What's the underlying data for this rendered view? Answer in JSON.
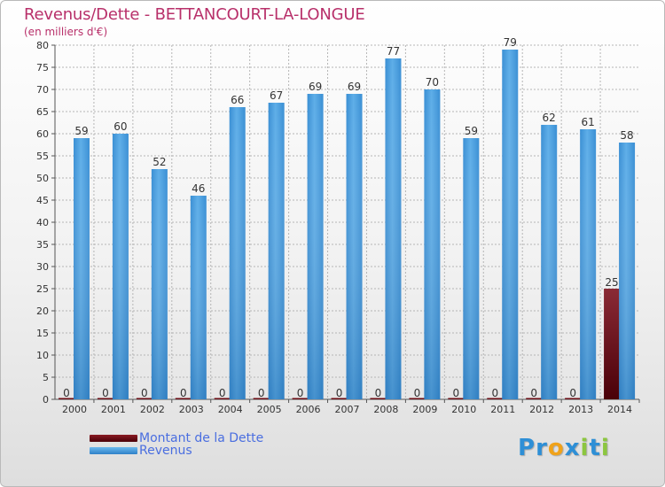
{
  "header": {
    "title": "Revenus/Dette - BETTANCOURT-LA-LONGUE",
    "subtitle": "(en milliers d'€)"
  },
  "chart_data": {
    "type": "bar",
    "title": "Revenus/Dette - BETTANCOURT-LA-LONGUE",
    "ylabel": "(en milliers d'€)",
    "xlabel": "",
    "categories": [
      "2000",
      "2001",
      "2002",
      "2003",
      "2004",
      "2005",
      "2006",
      "2007",
      "2008",
      "2009",
      "2010",
      "2011",
      "2012",
      "2013",
      "2014"
    ],
    "series": [
      {
        "name": "Montant de la Dette",
        "color": "#6b0a12",
        "values": [
          0,
          0,
          0,
          0,
          0,
          0,
          0,
          0,
          0,
          0,
          0,
          0,
          0,
          0,
          25
        ]
      },
      {
        "name": "Revenus",
        "color": "#4fa3e3",
        "values": [
          59,
          60,
          52,
          46,
          66,
          67,
          69,
          69,
          77,
          70,
          59,
          79,
          62,
          61,
          58
        ]
      }
    ],
    "ylim": [
      0,
      80
    ],
    "yticks": [
      0,
      5,
      10,
      15,
      20,
      25,
      30,
      35,
      40,
      45,
      50,
      55,
      60,
      65,
      70,
      75,
      80
    ],
    "grid": true,
    "legend_position": "bottom-left"
  },
  "legend": {
    "items": [
      {
        "label": "Montant de la Dette",
        "color": "#6b0a12"
      },
      {
        "label": "Revenus",
        "color": "#4fa3e3"
      }
    ]
  },
  "logo": {
    "letters": [
      "P",
      "r",
      "o",
      "x",
      "i",
      "t",
      "i"
    ],
    "colors": [
      "#2e8fd6",
      "#2e8fd6",
      "#f0a21a",
      "#2e8fd6",
      "#8cc63f",
      "#2e8fd6",
      "#8cc63f"
    ]
  }
}
